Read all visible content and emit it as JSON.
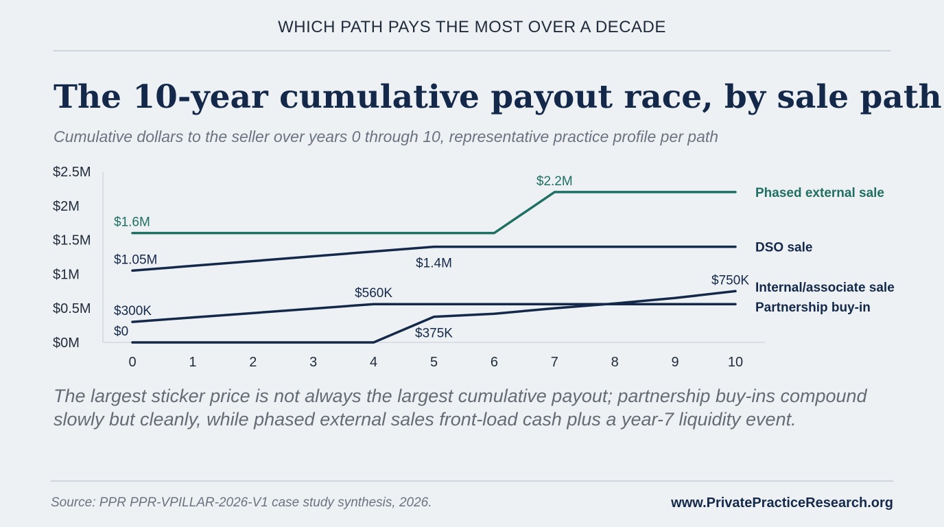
{
  "header": {
    "kicker": "WHICH PATH PAYS THE MOST OVER A DECADE",
    "title": "The 10-year cumulative payout race, by sale path",
    "subtitle": "Cumulative dollars to the seller over years 0 through 10, representative practice profile per path"
  },
  "takeaway": "The largest sticker price is not always the largest cumulative payout; partnership buy-ins compound slowly but cleanly, while phased external sales front-load cash plus a year-7 liquidity event.",
  "footer": {
    "source": "Source: PPR PPR-VPILLAR-2026-V1 case study synthesis, 2026.",
    "site": "www.PrivatePracticeResearch.org"
  },
  "chart_data": {
    "type": "line",
    "x": [
      0,
      1,
      2,
      3,
      4,
      5,
      6,
      7,
      8,
      9,
      10
    ],
    "x_tick_labels": [
      "0",
      "1",
      "2",
      "3",
      "4",
      "5",
      "6",
      "7",
      "8",
      "9",
      "10"
    ],
    "y_tick_values": [
      0,
      0.5,
      1,
      1.5,
      2,
      2.5
    ],
    "y_tick_labels": [
      "$0M",
      "$0.5M",
      "$1M",
      "$1.5M",
      "$2M",
      "$2.5M"
    ],
    "ylim": [
      0,
      2.5
    ],
    "xlim": [
      0,
      10
    ],
    "grid": false,
    "legend": "direct labels at right end of lines",
    "series": [
      {
        "name": "Phased external sale",
        "color": "#1f6f63",
        "values": [
          1.6,
          1.6,
          1.6,
          1.6,
          1.6,
          1.6,
          1.6,
          2.2,
          2.2,
          2.2,
          2.2
        ],
        "annotations": [
          {
            "x": 0,
            "text": "$1.6M",
            "pos": "above"
          },
          {
            "x": 7,
            "text": "$2.2M",
            "pos": "above"
          }
        ]
      },
      {
        "name": "DSO sale",
        "color": "#14294a",
        "values": [
          1.05,
          1.12,
          1.19,
          1.26,
          1.33,
          1.4,
          1.4,
          1.4,
          1.4,
          1.4,
          1.4
        ],
        "annotations": [
          {
            "x": 0,
            "text": "$1.05M",
            "pos": "above"
          },
          {
            "x": 5,
            "text": "$1.4M",
            "pos": "below"
          }
        ]
      },
      {
        "name": "Internal/associate sale",
        "color": "#14294a",
        "values": [
          0,
          0,
          0,
          0,
          0,
          0.375,
          0.42,
          0.5,
          0.57,
          0.65,
          0.75
        ],
        "annotations": [
          {
            "x": 0,
            "text": "$0",
            "pos": "above"
          },
          {
            "x": 5,
            "text": "$375K",
            "pos": "below"
          },
          {
            "x": 10,
            "text": "$750K",
            "pos": "above"
          }
        ]
      },
      {
        "name": "Partnership buy-in",
        "color": "#14294a",
        "values": [
          0.3,
          0.365,
          0.43,
          0.495,
          0.56,
          0.56,
          0.56,
          0.56,
          0.56,
          0.56,
          0.56
        ],
        "annotations": [
          {
            "x": 0,
            "text": "$300K",
            "pos": "above"
          },
          {
            "x": 4,
            "text": "$560K",
            "pos": "above"
          }
        ]
      }
    ]
  }
}
